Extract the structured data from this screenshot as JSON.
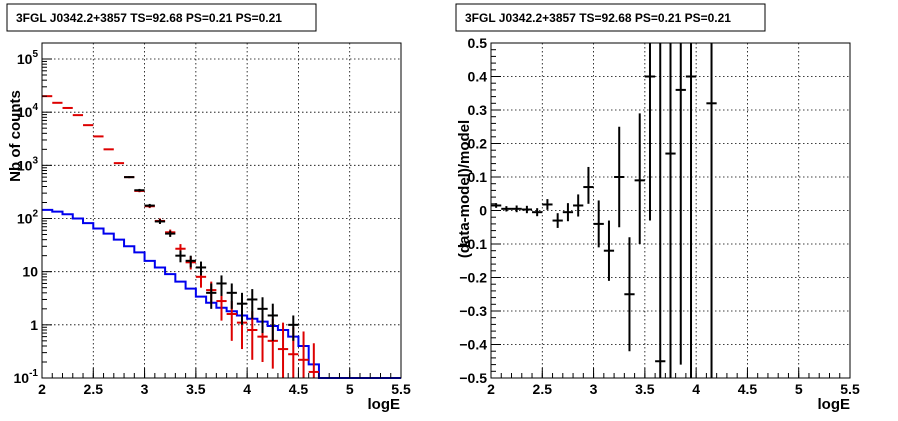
{
  "chart_data": [
    {
      "type": "scatter",
      "title": "3FGL J0342.2+3857 TS=92.68 PS=0.21 PS=0.21",
      "xlabel": "logE",
      "ylabel": "Nb of counts",
      "xlim": [
        2,
        5.5
      ],
      "ylim": [
        0.1,
        200000
      ],
      "yscale": "log",
      "grid": true,
      "x_ticks": [
        "2",
        "2.5",
        "3",
        "3.5",
        "4",
        "4.5",
        "5",
        "5.5"
      ],
      "y_ticks": [
        "10^{-1}",
        "1",
        "10",
        "10^{2}",
        "10^{3}",
        "10^{4}",
        "10^{5}"
      ],
      "series": [
        {
          "kind": "step",
          "color": "#0000ee",
          "x_edges": [
            2.0,
            2.1,
            2.2,
            2.3,
            2.4,
            2.5,
            2.6,
            2.7,
            2.8,
            2.9,
            3.0,
            3.1,
            3.2,
            3.3,
            3.4,
            3.5,
            3.6,
            3.7,
            3.8,
            3.9,
            4.0,
            4.1,
            4.2,
            4.3,
            4.4,
            4.5,
            4.6,
            4.7,
            4.8,
            4.9,
            5.0,
            5.1,
            5.2,
            5.3,
            5.4,
            5.5
          ],
          "values": [
            145,
            135,
            120,
            100,
            82,
            65,
            52,
            40,
            30,
            23,
            16,
            12,
            9,
            6.5,
            4.8,
            3.4,
            2.6,
            2.1,
            1.8,
            1.5,
            1.3,
            1.15,
            0.95,
            0.8,
            0.6,
            0.4,
            0.18,
            0.1,
            0.1,
            0.1,
            0.1,
            0.1,
            0.1,
            0.1,
            0.1
          ]
        },
        {
          "kind": "errorbar",
          "color": "#dd0000",
          "x": [
            2.05,
            2.15,
            2.25,
            2.35,
            2.45,
            2.55,
            2.65,
            2.75,
            2.85,
            2.95,
            3.05,
            3.15,
            3.25,
            3.35,
            3.45,
            3.55,
            3.65,
            3.75,
            3.85,
            3.95,
            4.05,
            4.15,
            4.25,
            4.35,
            4.45,
            4.55,
            4.65
          ],
          "y": [
            20000,
            15000,
            12000,
            8800,
            5700,
            3500,
            2000,
            1100,
            600,
            330,
            170,
            90,
            55,
            27,
            15,
            8,
            4.5,
            2.8,
            1.6,
            1.1,
            0.8,
            0.6,
            0.5,
            0.35,
            0.28,
            0.22,
            0.13
          ],
          "ylow": [
            19860,
            14880,
            11890,
            8706,
            5624,
            3440,
            1955,
            1067,
            575,
            312,
            157,
            80,
            48,
            21,
            11,
            5,
            2.5,
            1.2,
            0.5,
            0.35,
            0.22,
            0.2,
            0.15,
            0.1,
            0.1,
            0.1,
            0.1
          ],
          "yhigh": [
            20140,
            15120,
            12110,
            8894,
            5776,
            3560,
            2045,
            1133,
            625,
            348,
            183,
            100,
            62,
            33,
            19.5,
            11,
            6.5,
            4.5,
            2.8,
            2.4,
            1.8,
            1.5,
            1.3,
            1.1,
            0.9,
            0.75,
            0.45
          ],
          "xerr": 0.05
        },
        {
          "kind": "errorbar",
          "color": "#000000",
          "x": [
            2.85,
            2.95,
            3.05,
            3.15,
            3.25,
            3.35,
            3.45,
            3.55,
            3.65,
            3.75,
            3.85,
            3.95,
            4.05,
            4.15,
            4.25,
            4.45
          ],
          "y": [
            600,
            340,
            175,
            88,
            52,
            20,
            16,
            12,
            4,
            6,
            4,
            2.5,
            3,
            2,
            1.5,
            1
          ],
          "ylow": [
            576,
            320,
            162,
            79,
            45,
            15,
            12,
            8.5,
            2,
            3.5,
            2,
            1,
            1.3,
            0.7,
            0.5,
            0.5
          ],
          "yhigh": [
            624,
            360,
            188,
            97,
            59,
            25,
            20,
            15.5,
            6,
            8.5,
            6,
            4,
            4.7,
            3.3,
            2.5,
            1.5
          ],
          "xerr": 0.05
        }
      ]
    },
    {
      "type": "scatter",
      "title": "3FGL J0342.2+3857 TS=92.68 PS=0.21 PS=0.21",
      "xlabel": "logE",
      "ylabel": "(data-model)/model",
      "xlim": [
        2,
        5.5
      ],
      "ylim": [
        -0.5,
        0.5
      ],
      "yscale": "linear",
      "grid": true,
      "x_ticks": [
        "2",
        "2.5",
        "3",
        "3.5",
        "4",
        "4.5",
        "5",
        "5.5"
      ],
      "y_ticks": [
        "−0.5",
        "−0.4",
        "−0.3",
        "−0.2",
        "−0.1",
        "0",
        "0.1",
        "0.2",
        "0.3",
        "0.4",
        "0.5"
      ],
      "series": [
        {
          "kind": "errorbar",
          "color": "#000000",
          "x": [
            2.05,
            2.15,
            2.25,
            2.35,
            2.45,
            2.55,
            2.65,
            2.75,
            2.85,
            2.95,
            3.05,
            3.15,
            3.25,
            3.35,
            3.45,
            3.55,
            3.65,
            3.75,
            3.85,
            3.95,
            4.15
          ],
          "y": [
            0.015,
            0.005,
            0.005,
            0.003,
            -0.005,
            0.018,
            -0.03,
            -0.005,
            0.015,
            0.07,
            -0.04,
            -0.12,
            0.1,
            -0.25,
            0.09,
            0.4,
            -0.45,
            0.17,
            0.36,
            0.4,
            0.32
          ],
          "ylow": [
            0.008,
            -0.003,
            -0.005,
            -0.008,
            -0.017,
            0.002,
            -0.052,
            -0.032,
            -0.018,
            0.02,
            -0.11,
            -0.21,
            -0.05,
            -0.42,
            -0.1,
            -0.03,
            -0.5,
            -0.5,
            -0.46,
            -0.5,
            -0.5
          ],
          "yhigh": [
            0.022,
            0.013,
            0.015,
            0.014,
            0.007,
            0.034,
            -0.008,
            0.022,
            0.048,
            0.13,
            0.03,
            -0.03,
            0.25,
            -0.08,
            0.29,
            0.5,
            0.5,
            0.5,
            0.5,
            0.5,
            0.5
          ],
          "xerr": 0.05
        }
      ]
    }
  ]
}
